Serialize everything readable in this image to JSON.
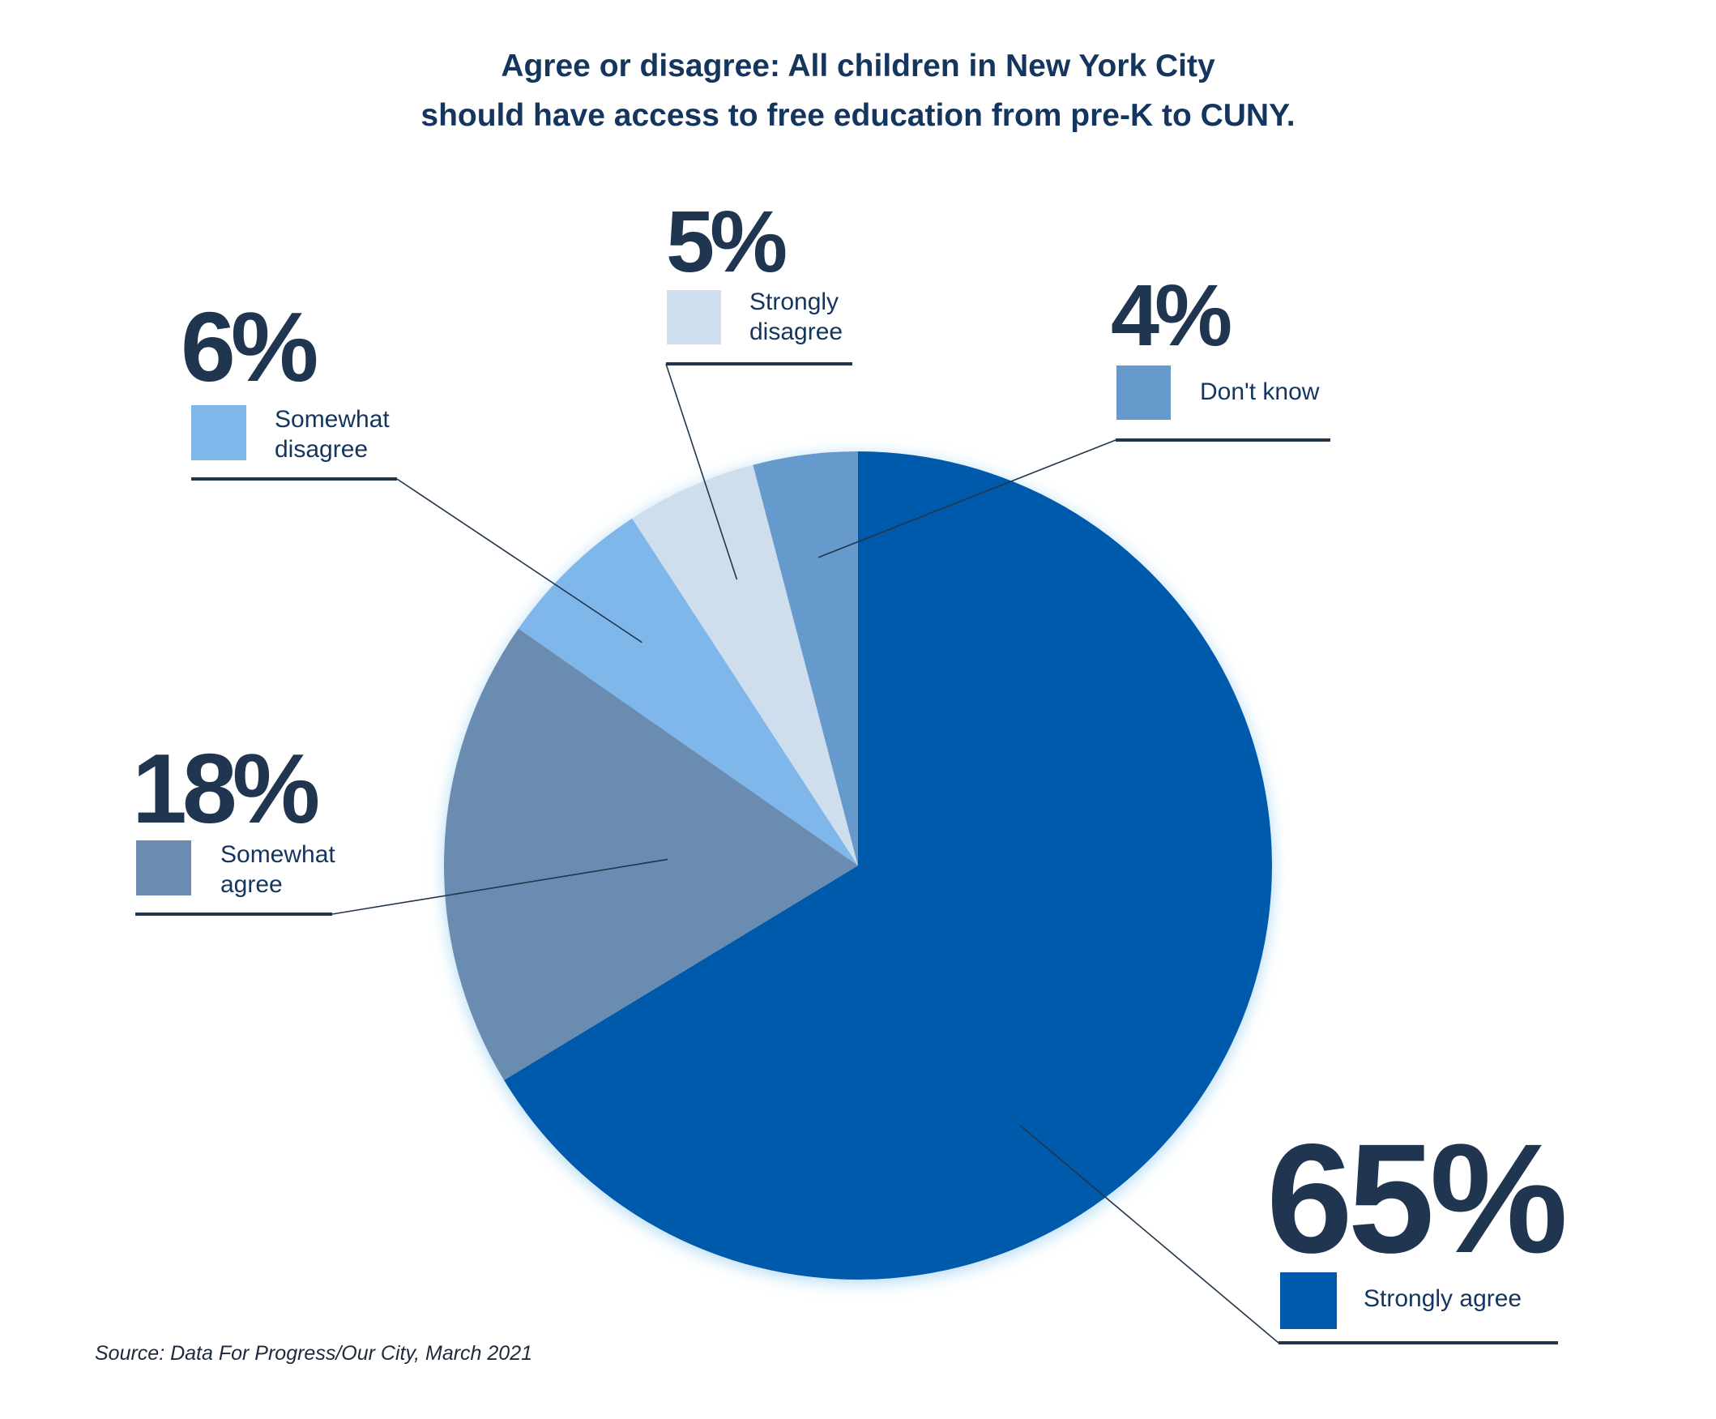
{
  "chart_data": {
    "type": "pie",
    "title_lines": [
      "Agree or disagree: All children in New York City",
      "should have access to free education from pre-K to CUNY."
    ],
    "slices": [
      {
        "label": "Strongly agree",
        "label_lines": [
          "Strongly agree"
        ],
        "value": 65,
        "display": "65%",
        "color": "#005aab"
      },
      {
        "label": "Somewhat agree",
        "label_lines": [
          "Somewhat",
          "agree"
        ],
        "value": 18,
        "display": "18%",
        "color": "#6a8cb0"
      },
      {
        "label": "Somewhat disagree",
        "label_lines": [
          "Somewhat",
          "disagree"
        ],
        "value": 6,
        "display": "6%",
        "color": "#80b7ea"
      },
      {
        "label": "Strongly disagree",
        "label_lines": [
          "Strongly",
          "disagree"
        ],
        "value": 5,
        "display": "5%",
        "color": "#cfdeed"
      },
      {
        "label": "Don't know",
        "label_lines": [
          "Don't know"
        ],
        "value": 4,
        "display": "4%",
        "color": "#6699cc"
      }
    ],
    "source": "Source: Data For Progress/Our City, March 2021"
  },
  "colors": {
    "title": "#14355e",
    "percent": "#203650",
    "leader_line": "#22354a"
  }
}
